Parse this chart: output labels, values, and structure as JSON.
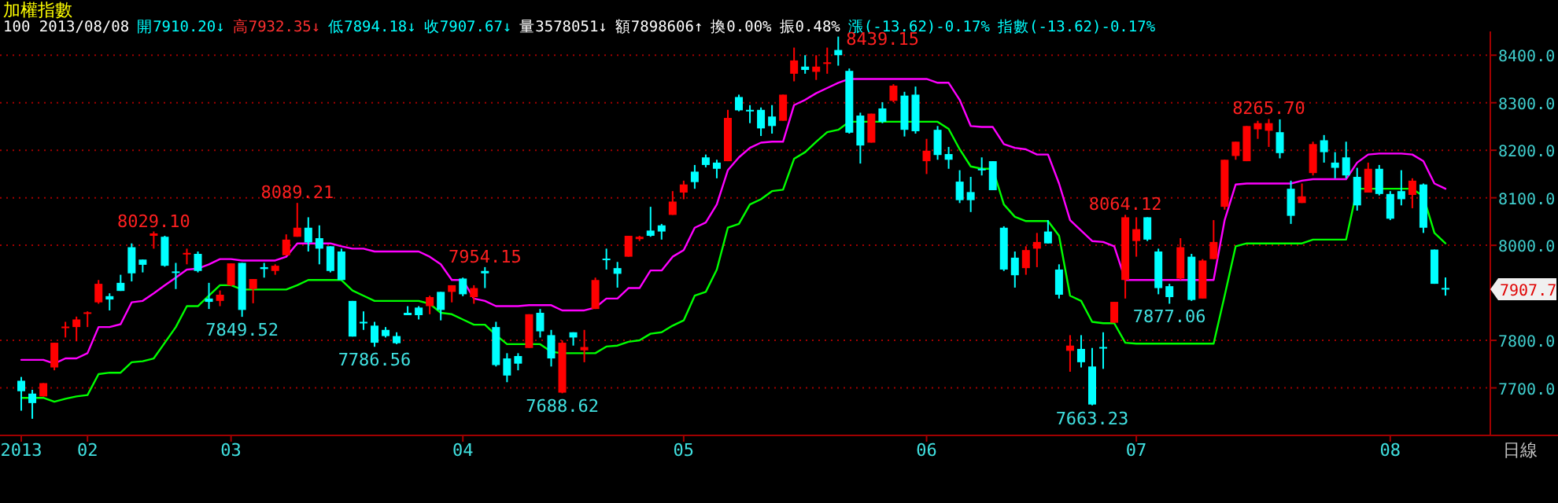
{
  "chart_data": {
    "type": "candlestick",
    "title": "加權指數",
    "xlabel": "日線",
    "categories": [
      "2013",
      null,
      null,
      null,
      null,
      null,
      "02",
      null,
      null,
      null,
      null,
      null,
      null,
      null,
      null,
      null,
      null,
      null,
      null,
      "03",
      null,
      null,
      null,
      null,
      null,
      null,
      null,
      null,
      null,
      null,
      null,
      null,
      null,
      null,
      null,
      null,
      null,
      null,
      null,
      null,
      "04",
      null,
      null,
      null,
      null,
      null,
      null,
      null,
      null,
      null,
      null,
      null,
      null,
      null,
      null,
      null,
      null,
      null,
      null,
      null,
      "05",
      null,
      null,
      null,
      null,
      null,
      null,
      null,
      null,
      null,
      null,
      null,
      null,
      null,
      null,
      null,
      null,
      null,
      null,
      null,
      null,
      null,
      "06",
      null,
      null,
      null,
      null,
      null,
      null,
      null,
      null,
      null,
      null,
      null,
      null,
      null,
      null,
      null,
      null,
      null,
      null,
      "07",
      null,
      null,
      null,
      null,
      null,
      null,
      null,
      null,
      null,
      null,
      null,
      null,
      null,
      null,
      null,
      null,
      null,
      null,
      null,
      null,
      null,
      null,
      "08",
      null,
      null,
      null,
      null,
      null
    ],
    "ohlc": [
      [
        7715,
        7723,
        7652,
        7693
      ],
      [
        7688,
        7696,
        7635,
        7668
      ],
      [
        7682,
        7710,
        7682,
        7710
      ],
      [
        7743,
        7795,
        7737,
        7795
      ],
      [
        7827,
        7839,
        7806,
        7829
      ],
      [
        7828,
        7850,
        7798,
        7844
      ],
      [
        7857,
        7861,
        7828,
        7859
      ],
      [
        7880,
        7927,
        7877,
        7919
      ],
      [
        7893,
        7899,
        7863,
        7886
      ],
      [
        7921,
        7938,
        7904,
        7904
      ],
      [
        7996,
        8004,
        7924,
        7941
      ],
      [
        7970,
        7970,
        7943,
        7959
      ],
      [
        8020,
        8029.1,
        7993,
        8025
      ],
      [
        8018,
        8020,
        7955,
        7957
      ],
      [
        7945,
        7963,
        7908,
        7943
      ],
      [
        7981,
        7993,
        7960,
        7984
      ],
      [
        7982,
        7987,
        7943,
        7946
      ],
      [
        7888,
        7921,
        7866,
        7881
      ],
      [
        7883,
        7905,
        7872,
        7896
      ],
      [
        7916,
        7962,
        7914,
        7962
      ],
      [
        7963,
        7963,
        7849.52,
        7864
      ],
      [
        7908,
        7929,
        7878,
        7929
      ],
      [
        7954,
        7963,
        7932,
        7950
      ],
      [
        7946,
        7960,
        7938,
        7957
      ],
      [
        7979,
        8023,
        7979,
        8012
      ],
      [
        8018,
        8089.21,
        8018,
        8037
      ],
      [
        8037,
        8059,
        7987,
        8006
      ],
      [
        8015,
        8042,
        7960,
        7993
      ],
      [
        7998,
        7998,
        7943,
        7946
      ],
      [
        7987,
        7993,
        7927,
        7927
      ],
      [
        7883,
        7883,
        7808,
        7808
      ],
      [
        7839,
        7861,
        7822,
        7837
      ],
      [
        7831,
        7839,
        7786.56,
        7795
      ],
      [
        7822,
        7828,
        7806,
        7809
      ],
      [
        7809,
        7817,
        7792,
        7794
      ],
      [
        7858,
        7872,
        7853,
        7853
      ],
      [
        7869,
        7872,
        7844,
        7853
      ],
      [
        7872,
        7894,
        7855,
        7891
      ],
      [
        7902,
        7902,
        7842,
        7864
      ],
      [
        7902,
        7916,
        7880,
        7916
      ],
      [
        7930,
        7932,
        7893,
        7897
      ],
      [
        7891,
        7916,
        7877,
        7910
      ],
      [
        7946,
        7954.15,
        7910,
        7941
      ],
      [
        7828,
        7839,
        7745,
        7748
      ],
      [
        7762,
        7773,
        7712,
        7726
      ],
      [
        7767,
        7773,
        7737,
        7751
      ],
      [
        7784,
        7855,
        7784,
        7855
      ],
      [
        7858,
        7866,
        7806,
        7819
      ],
      [
        7811,
        7822,
        7745,
        7762
      ],
      [
        7690,
        7800,
        7688.62,
        7795
      ],
      [
        7817,
        7817,
        7789,
        7806
      ],
      [
        7779,
        7822,
        7754,
        7786
      ],
      [
        7866,
        7932,
        7866,
        7927
      ],
      [
        7972,
        7993,
        7949,
        7971
      ],
      [
        7952,
        7965,
        7911,
        7940
      ],
      [
        7976,
        8020,
        7976,
        8020
      ],
      [
        8013,
        8020,
        8009,
        8018
      ],
      [
        8031,
        8081,
        8018,
        8020
      ],
      [
        8042,
        8045,
        8012,
        8029
      ],
      [
        8064,
        8114,
        8064,
        8092
      ],
      [
        8111,
        8136,
        8097,
        8128
      ],
      [
        8155,
        8169,
        8119,
        8133
      ],
      [
        8185,
        8191,
        8164,
        8169
      ],
      [
        8174,
        8180,
        8141,
        8161
      ],
      [
        8177,
        8285,
        8177,
        8268
      ],
      [
        8312,
        8317,
        8282,
        8284
      ],
      [
        8285,
        8295,
        8257,
        8283
      ],
      [
        8285,
        8290,
        8230,
        8246
      ],
      [
        8271,
        8295,
        8235,
        8251
      ],
      [
        8262,
        8317,
        8262,
        8317
      ],
      [
        8361,
        8416,
        8345,
        8389
      ],
      [
        8376,
        8400,
        8361,
        8369
      ],
      [
        8365,
        8400,
        8348,
        8376
      ],
      [
        8383,
        8416,
        8361,
        8385
      ],
      [
        8411,
        8439.15,
        8378,
        8400
      ],
      [
        8367,
        8372,
        8235,
        8237
      ],
      [
        8273,
        8279,
        8172,
        8210
      ],
      [
        8216,
        8277,
        8216,
        8277
      ],
      [
        8288,
        8301,
        8257,
        8260
      ],
      [
        8304,
        8339,
        8301,
        8336
      ],
      [
        8315,
        8323,
        8229,
        8243
      ],
      [
        8317,
        8334,
        8235,
        8240
      ],
      [
        8177,
        8224,
        8150,
        8199
      ],
      [
        8243,
        8251,
        8180,
        8190
      ],
      [
        8192,
        8207,
        8161,
        8180
      ],
      [
        8134,
        8158,
        8089,
        8095
      ],
      [
        8112,
        8144,
        8070,
        8095
      ],
      [
        8161,
        8185,
        8147,
        8158
      ],
      [
        8177,
        8177,
        8116,
        8116
      ],
      [
        8037,
        8040,
        7946,
        7949
      ],
      [
        7974,
        7987,
        7911,
        7937
      ],
      [
        7952,
        7998,
        7938,
        7990
      ],
      [
        7993,
        8026,
        7954,
        8007
      ],
      [
        8029,
        8053,
        8004,
        8004
      ],
      [
        7949,
        7960,
        7888,
        7896
      ],
      [
        7778,
        7811,
        7734,
        7789
      ],
      [
        7782,
        7811,
        7743,
        7754
      ],
      [
        7745,
        7784,
        7663.23,
        7665
      ],
      [
        7786,
        7817,
        7740,
        7784
      ],
      [
        7837,
        7881,
        7837,
        7881
      ],
      [
        7927,
        8064.12,
        7888,
        8059
      ],
      [
        8009,
        8059,
        7976,
        8034
      ],
      [
        8059,
        8059,
        8009,
        8012
      ],
      [
        7987,
        7993,
        7897,
        7910
      ],
      [
        7914,
        7919,
        7877.06,
        7891
      ],
      [
        7930,
        8015,
        7927,
        7996
      ],
      [
        7976,
        7982,
        7883,
        7885
      ],
      [
        7888,
        7971,
        7888,
        7968
      ],
      [
        7971,
        8053,
        7971,
        8007
      ],
      [
        8081,
        8180,
        8075,
        8180
      ],
      [
        8188,
        8218,
        8180,
        8218
      ],
      [
        8177,
        8251,
        8177,
        8251
      ],
      [
        8244,
        8262,
        8224,
        8257
      ],
      [
        8241,
        8265.7,
        8207,
        8257
      ],
      [
        8238,
        8265,
        8183,
        8194
      ],
      [
        8119,
        8136,
        8045,
        8062
      ],
      [
        8089,
        8130,
        8089,
        8103
      ],
      [
        8152,
        8218,
        8147,
        8213
      ],
      [
        8221,
        8232,
        8174,
        8196
      ],
      [
        8174,
        8196,
        8141,
        8163
      ],
      [
        8185,
        8218,
        8141,
        8147
      ],
      [
        8144,
        8163,
        8073,
        8084
      ],
      [
        8111,
        8174,
        8111,
        8161
      ],
      [
        8161,
        8169,
        8105,
        8108
      ],
      [
        8108,
        8114,
        8053,
        8056
      ],
      [
        8114,
        8158,
        8084,
        8097
      ],
      [
        8106,
        8141,
        8078,
        8136
      ],
      [
        8128,
        8130,
        8026,
        8037
      ],
      [
        7991,
        7991,
        7919,
        7919
      ],
      [
        7910.2,
        7932.35,
        7894.18,
        7907.67
      ]
    ],
    "colors": [
      "#00ffff",
      "#00ffff",
      "#ff0000",
      "#ff0000",
      "#ff0000",
      "#ff0000",
      "#ff0000",
      "#ff0000",
      "#00ffff",
      "#00ffff",
      "#00ffff",
      "#00ffff",
      "#ff0000",
      "#00ffff",
      "#00ffff",
      "#ff0000",
      "#00ffff",
      "#00ffff",
      "#ff0000",
      "#ff0000",
      "#00ffff",
      "#ff0000",
      "#00ffff",
      "#ff0000",
      "#ff0000",
      "#ff0000",
      "#00ffff",
      "#00ffff",
      "#00ffff",
      "#00ffff",
      "#00ffff",
      "#00ffff",
      "#00ffff",
      "#00ffff",
      "#00ffff",
      "#00ffff",
      "#00ffff",
      "#ff0000",
      "#00ffff",
      "#ff0000",
      "#00ffff",
      "#ff0000",
      "#00ffff",
      "#00ffff",
      "#00ffff",
      "#00ffff",
      "#ff0000",
      "#00ffff",
      "#00ffff",
      "#ff0000",
      "#00ffff",
      "#ff0000",
      "#ff0000",
      "#00ffff",
      "#00ffff",
      "#ff0000",
      "#ff0000",
      "#00ffff",
      "#00ffff",
      "#ff0000",
      "#ff0000",
      "#00ffff",
      "#00ffff",
      "#00ffff",
      "#ff0000",
      "#00ffff",
      "#00ffff",
      "#00ffff",
      "#00ffff",
      "#ff0000",
      "#ff0000",
      "#00ffff",
      "#ff0000",
      "#ff0000",
      "#00ffff",
      "#00ffff",
      "#00ffff",
      "#ff0000",
      "#00ffff",
      "#ff0000",
      "#00ffff",
      "#00ffff",
      "#ff0000",
      "#00ffff",
      "#00ffff",
      "#00ffff",
      "#00ffff",
      "#00ffff",
      "#00ffff",
      "#00ffff",
      "#00ffff",
      "#ff0000",
      "#ff0000",
      "#00ffff",
      "#00ffff",
      "#ff0000",
      "#00ffff",
      "#00ffff",
      "#00ffff",
      "#ff0000",
      "#ff0000",
      "#ff0000",
      "#00ffff",
      "#00ffff",
      "#00ffff",
      "#ff0000",
      "#00ffff",
      "#ff0000",
      "#ff0000",
      "#ff0000",
      "#ff0000",
      "#ff0000",
      "#ff0000",
      "#ff0000",
      "#00ffff",
      "#00ffff",
      "#ff0000",
      "#ff0000",
      "#00ffff",
      "#00ffff",
      "#00ffff",
      "#00ffff",
      "#ff0000",
      "#00ffff",
      "#00ffff",
      "#00ffff",
      "#ff0000",
      "#00ffff",
      "#00ffff",
      "#00ffff"
    ],
    "series": [
      {
        "type": "line",
        "color": "#ff00ff",
        "values": [
          7759,
          7759,
          7759,
          7751,
          7762,
          7762,
          7773,
          7828,
          7828,
          7834,
          7880,
          7883,
          7899,
          7916,
          7932,
          7949,
          7951,
          7960,
          7971,
          7971,
          7968,
          7968,
          7968,
          7968,
          7976,
          8004,
          8004,
          8004,
          8004,
          7998,
          7993,
          7993,
          7987,
          7987,
          7987,
          7987,
          7987,
          7976,
          7960,
          7927,
          7927,
          7888,
          7883,
          7872,
          7872,
          7872,
          7874,
          7874,
          7874,
          7863,
          7863,
          7863,
          7869,
          7888,
          7888,
          7910,
          7910,
          7947,
          7947,
          7976,
          7990,
          8037,
          8048,
          8086,
          8158,
          8185,
          8205,
          8216,
          8218,
          8218,
          8295,
          8306,
          8320,
          8331,
          8342,
          8350,
          8350,
          8350,
          8350,
          8350,
          8350,
          8350,
          8350,
          8342,
          8342,
          8306,
          8251,
          8249,
          8249,
          8213,
          8205,
          8202,
          8191,
          8191,
          8130,
          8053,
          8031,
          8009,
          8007,
          7998,
          7927,
          7927,
          7927,
          7927,
          7927,
          7927,
          7927,
          7927,
          7927,
          8053,
          8128,
          8130,
          8130,
          8130,
          8130,
          8130,
          8136,
          8139,
          8139,
          8139,
          8139,
          8174,
          8191,
          8193,
          8193,
          8193,
          8191,
          8177,
          8130,
          8119
        ]
      },
      {
        "type": "line",
        "color": "#00ff00",
        "values": [
          7679,
          7679,
          7679,
          7671,
          7677,
          7682,
          7685,
          7729,
          7732,
          7732,
          7754,
          7756,
          7762,
          7795,
          7828,
          7872,
          7872,
          7894,
          7916,
          7916,
          7907,
          7907,
          7907,
          7907,
          7907,
          7916,
          7927,
          7927,
          7927,
          7927,
          7905,
          7894,
          7883,
          7883,
          7883,
          7883,
          7883,
          7877,
          7858,
          7855,
          7844,
          7833,
          7833,
          7811,
          7792,
          7792,
          7792,
          7792,
          7776,
          7773,
          7773,
          7773,
          7773,
          7787,
          7789,
          7797,
          7800,
          7814,
          7817,
          7831,
          7842,
          7894,
          7902,
          7949,
          8037,
          8045,
          8086,
          8097,
          8114,
          8117,
          8182,
          8196,
          8218,
          8238,
          8243,
          8260,
          8260,
          8260,
          8260,
          8260,
          8260,
          8260,
          8260,
          8260,
          8245,
          8202,
          8166,
          8161,
          8161,
          8086,
          8060,
          8051,
          8051,
          8051,
          8020,
          7894,
          7883,
          7839,
          7836,
          7836,
          7795,
          7793,
          7793,
          7793,
          7793,
          7793,
          7793,
          7793,
          7793,
          7894,
          7998,
          8004,
          8004,
          8004,
          8004,
          8004,
          8004,
          8012,
          8012,
          8012,
          8012,
          8119,
          8119,
          8119,
          8119,
          8119,
          8119,
          8103,
          8026,
          8004
        ]
      }
    ],
    "ylim": [
      7600,
      8450
    ],
    "yticks": [
      {
        "value": 7700,
        "label": "7700.0"
      },
      {
        "value": 7800,
        "label": "7800.0"
      },
      {
        "value": 8000,
        "label": "8000.0"
      },
      {
        "value": 8100,
        "label": "8100.0"
      },
      {
        "value": 8200,
        "label": "8200.0"
      },
      {
        "value": 8300,
        "label": "8300.0"
      },
      {
        "value": 8400,
        "label": "8400.0"
      }
    ],
    "grid": "y",
    "value_labels": [
      null,
      null,
      null,
      null,
      null,
      null,
      null,
      null,
      null,
      null,
      null,
      null,
      "8029.10",
      null,
      null,
      null,
      null,
      null,
      null,
      null,
      "7849.52",
      null,
      null,
      null,
      null,
      "8089.21",
      null,
      null,
      null,
      null,
      null,
      null,
      "7786.56",
      null,
      null,
      null,
      null,
      null,
      null,
      null,
      null,
      null,
      "7954.15",
      null,
      null,
      null,
      null,
      null,
      null,
      "7688.62",
      null,
      null,
      null,
      null,
      null,
      null,
      null,
      null,
      null,
      null,
      null,
      null,
      null,
      null,
      null,
      null,
      null,
      null,
      null,
      null,
      null,
      null,
      null,
      null,
      "8439.15",
      null,
      null,
      null,
      null,
      null,
      null,
      null,
      null,
      null,
      null,
      null,
      null,
      null,
      null,
      null,
      null,
      null,
      null,
      null,
      null,
      null,
      null,
      "7663.23",
      null,
      null,
      "8064.12",
      null,
      null,
      null,
      "7877.06",
      null,
      null,
      null,
      null,
      null,
      null,
      null,
      null,
      "8265.70",
      null,
      null,
      null,
      null,
      null,
      null,
      null,
      null,
      null,
      null,
      null,
      null,
      null,
      null,
      null,
      null
    ],
    "annotations": [
      "100 2013/08/08",
      "開7910.20↓",
      "高7932.35↓",
      "低7894.18↓",
      "收7907.67↓",
      "量3578051↓",
      "額7898606↑",
      "換0.00%",
      "振0.48%",
      "漲(-13.62)-0.17%",
      "指數(-13.62)-0.17%",
      "7907.7"
    ]
  }
}
